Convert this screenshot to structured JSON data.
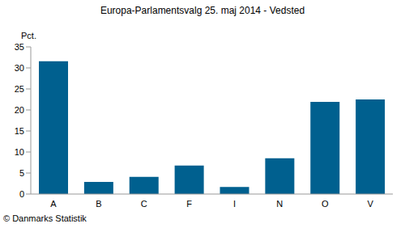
{
  "chart_data": {
    "type": "bar",
    "title": "Europa-Parlamentsvalg 25. maj 2014 - Vedsted",
    "y_label": "Pct.",
    "annotation": "© Danmarks Statistik",
    "categories": [
      "A",
      "B",
      "C",
      "F",
      "I",
      "N",
      "O",
      "V"
    ],
    "values": [
      31.6,
      2.9,
      4.1,
      6.8,
      1.7,
      8.5,
      21.9,
      22.5
    ],
    "color": "#00608f",
    "ylim": [
      0,
      35
    ],
    "yticks": [
      0,
      5,
      10,
      15,
      20,
      25,
      30,
      35
    ],
    "grid": false
  }
}
